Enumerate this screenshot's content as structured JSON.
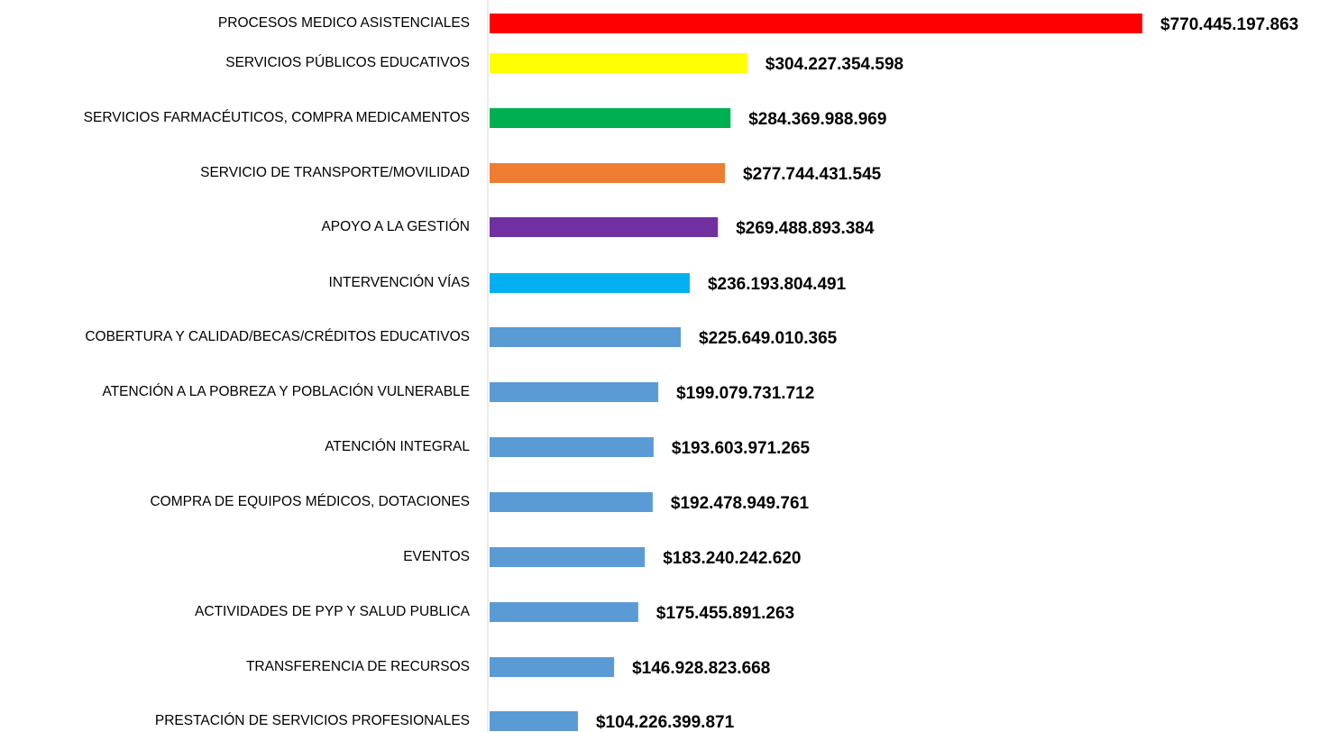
{
  "chart_data": {
    "type": "barh",
    "categories": [
      "PROCESOS MEDICO ASISTENCIALES",
      "SERVICIOS PÚBLICOS EDUCATIVOS",
      "SERVICIOS FARMACÉUTICOS, COMPRA MEDICAMENTOS",
      "SERVICIO DE TRANSPORTE/MOVILIDAD",
      "APOYO A LA GESTIÓN",
      "INTERVENCIÓN VÍAS",
      "COBERTURA Y CALIDAD/BECAS/CRÉDITOS EDUCATIVOS",
      "ATENCIÓN A LA POBREZA Y POBLACIÓN VULNERABLE",
      "ATENCIÓN INTEGRAL",
      "COMPRA DE EQUIPOS MÉDICOS, DOTACIONES",
      "EVENTOS",
      "ACTIVIDADES DE PYP Y SALUD PUBLICA",
      "TRANSFERENCIA DE RECURSOS",
      "PRESTACIÓN DE SERVICIOS PROFESIONALES"
    ],
    "values": [
      770445197863,
      304227354598,
      284369988969,
      277744431545,
      269488893384,
      236193804491,
      225649010365,
      199079731712,
      193603971265,
      192478949761,
      183240242620,
      175455891263,
      146928823668,
      104226399871
    ],
    "value_labels": [
      "$770.445.197.863",
      "$304.227.354.598",
      "$284.369.988.969",
      "$277.744.431.545",
      "$269.488.893.384",
      "$236.193.804.491",
      "$225.649.010.365",
      "$199.079.731.712",
      "$193.603.971.265",
      "$192.478.949.761",
      "$183.240.242.620",
      "$175.455.891.263",
      "$146.928.823.668",
      "$104.226.399.871"
    ],
    "colors": [
      "#ff0000",
      "#ffff00",
      "#00b050",
      "#ed7d31",
      "#7030a0",
      "#00b0f0",
      "#5b9bd5",
      "#5b9bd5",
      "#5b9bd5",
      "#5b9bd5",
      "#5b9bd5",
      "#5b9bd5",
      "#5b9bd5",
      "#5b9bd5"
    ]
  }
}
